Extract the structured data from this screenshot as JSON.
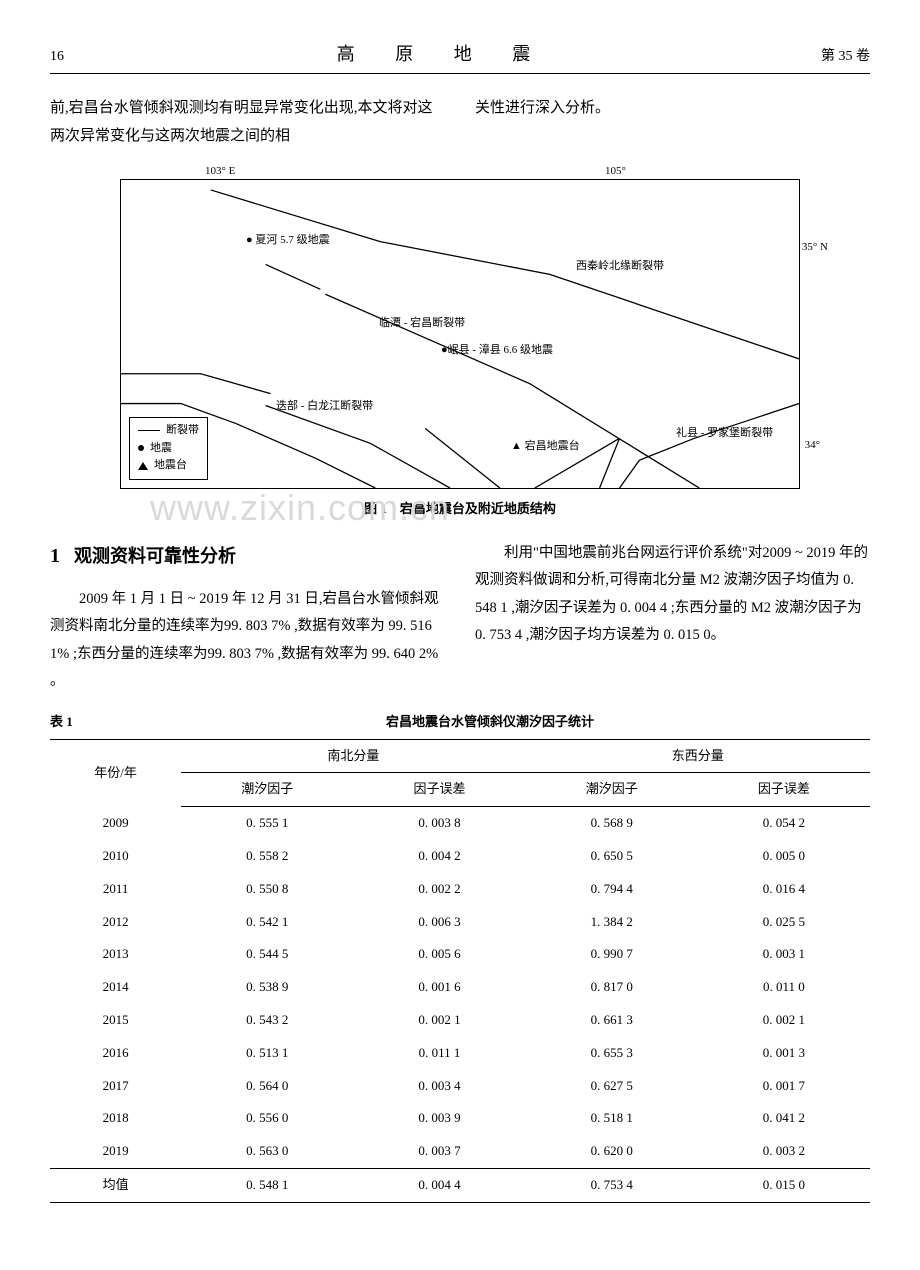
{
  "header": {
    "page_number": "16",
    "journal_title": "高 原 地 震",
    "volume": "第 35 卷"
  },
  "intro": {
    "left": "前,宕昌台水管倾斜观测均有明显异常变化出现,本文将对这两次异常变化与这两次地震之间的相",
    "right": "关性进行深入分析。"
  },
  "figure1": {
    "caption": "图 1　宕昌地震台及附近地质结构",
    "axis_labels": {
      "lon1": "103° E",
      "lon2": "105°",
      "lat1": "35° N",
      "lat2": "34°"
    },
    "faults": {
      "xiahe": "● 夏河 5.7 级地震",
      "xiqinling": "西秦岭北缘断裂带",
      "lintan": "临潭 - 宕昌断裂带",
      "minxian": "●岷县 - 漳县 6.6 级地震",
      "diebu": "迭部 - 白龙江断裂带",
      "lixian": "礼县 - 罗家堡断裂带",
      "dangchang": "▲ 宕昌地震台"
    },
    "legend": {
      "fault": "断裂带",
      "quake": "地震",
      "station": "地震台"
    },
    "line_color": "#000000",
    "background": "#ffffff"
  },
  "watermark": "www.zixin.com.cn",
  "section1": {
    "number": "1",
    "title": "观测资料可靠性分析",
    "para_left": "2009 年 1 月 1 日 ~ 2019 年 12 月 31 日,宕昌台水管倾斜观测资料南北分量的连续率为99. 803 7% ,数据有效率为 99. 516 1% ;东西分量的连续率为99. 803 7% ,数据有效率为 99. 640 2% 。",
    "para_right": "利用\"中国地震前兆台网运行评价系统\"对2009 ~ 2019 年的观测资料做调和分析,可得南北分量 M2 波潮汐因子均值为 0. 548 1 ,潮汐因子误差为 0. 004 4 ;东西分量的 M2 波潮汐因子为0. 753 4 ,潮汐因子均方误差为 0. 015 0。"
  },
  "table1": {
    "label": "表 1",
    "caption": "宕昌地震台水管倾斜仪潮汐因子统计",
    "header_year": "年份/年",
    "group_ns": "南北分量",
    "group_ew": "东西分量",
    "sub_factor": "潮汐因子",
    "sub_error": "因子误差",
    "rows": [
      {
        "year": "2009",
        "ns_f": "0. 555 1",
        "ns_e": "0. 003 8",
        "ew_f": "0. 568 9",
        "ew_e": "0. 054 2"
      },
      {
        "year": "2010",
        "ns_f": "0. 558 2",
        "ns_e": "0. 004 2",
        "ew_f": "0. 650 5",
        "ew_e": "0. 005 0"
      },
      {
        "year": "2011",
        "ns_f": "0. 550 8",
        "ns_e": "0. 002 2",
        "ew_f": "0. 794 4",
        "ew_e": "0. 016 4"
      },
      {
        "year": "2012",
        "ns_f": "0. 542 1",
        "ns_e": "0. 006 3",
        "ew_f": "1. 384 2",
        "ew_e": "0. 025 5"
      },
      {
        "year": "2013",
        "ns_f": "0. 544 5",
        "ns_e": "0. 005 6",
        "ew_f": "0. 990 7",
        "ew_e": "0. 003 1"
      },
      {
        "year": "2014",
        "ns_f": "0. 538 9",
        "ns_e": "0. 001 6",
        "ew_f": "0. 817 0",
        "ew_e": "0. 011 0"
      },
      {
        "year": "2015",
        "ns_f": "0. 543 2",
        "ns_e": "0. 002 1",
        "ew_f": "0. 661 3",
        "ew_e": "0. 002 1"
      },
      {
        "year": "2016",
        "ns_f": "0. 513 1",
        "ns_e": "0. 011 1",
        "ew_f": "0. 655 3",
        "ew_e": "0. 001 3"
      },
      {
        "year": "2017",
        "ns_f": "0. 564 0",
        "ns_e": "0. 003 4",
        "ew_f": "0. 627 5",
        "ew_e": "0. 001 7"
      },
      {
        "year": "2018",
        "ns_f": "0. 556 0",
        "ns_e": "0. 003 9",
        "ew_f": "0. 518 1",
        "ew_e": "0. 041 2"
      },
      {
        "year": "2019",
        "ns_f": "0. 563 0",
        "ns_e": "0. 003 7",
        "ew_f": "0. 620 0",
        "ew_e": "0. 003 2"
      },
      {
        "year": "均值",
        "ns_f": "0. 548 1",
        "ns_e": "0. 004 4",
        "ew_f": "0. 753 4",
        "ew_e": "0. 015 0"
      }
    ]
  }
}
